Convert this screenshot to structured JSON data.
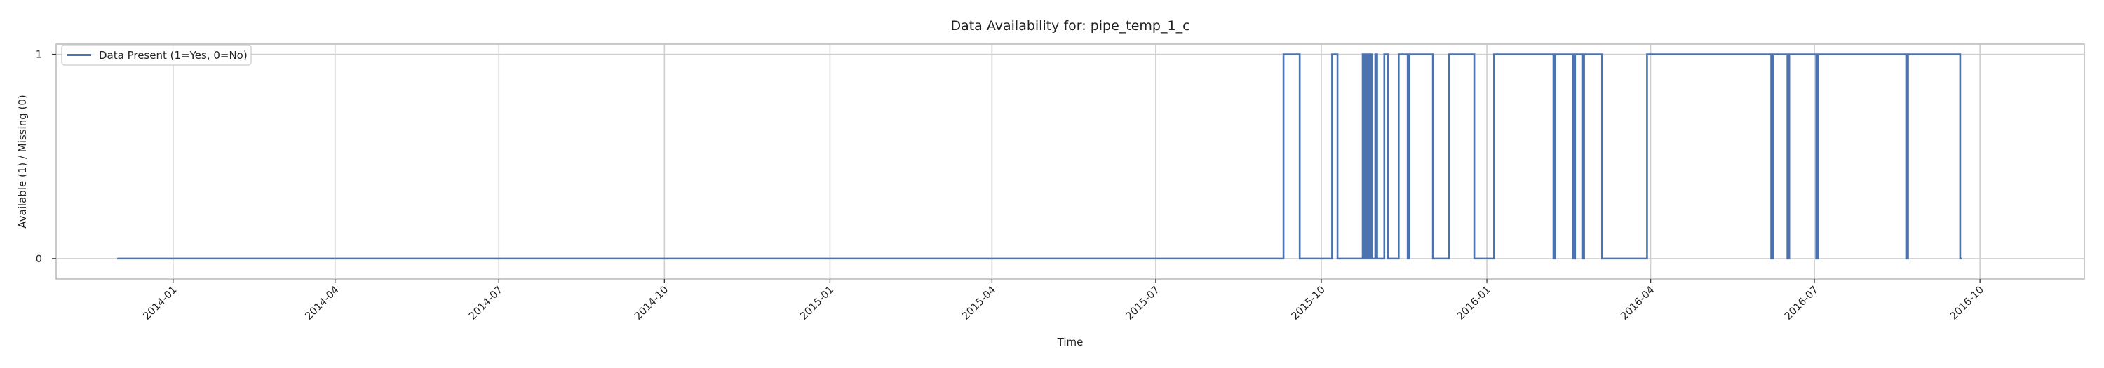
{
  "chart_data": {
    "type": "line",
    "title": "Data Availability for: pipe_temp_1_c",
    "xlabel": "Time",
    "ylabel": "Available (1) / Missing (0)",
    "x_ticks": [
      "2014-01",
      "2014-04",
      "2014-07",
      "2014-10",
      "2015-01",
      "2015-04",
      "2015-07",
      "2015-10",
      "2016-01",
      "2016-04",
      "2016-07",
      "2016-10"
    ],
    "y_ticks": [
      "0",
      "1"
    ],
    "xlim": [
      "2013-10-28",
      "2016-11-28"
    ],
    "ylim": [
      -0.1,
      1.05
    ],
    "grid": true,
    "legend_position": "top-left",
    "color": "#4c72b0",
    "series": [
      {
        "name": "Data Present (1=Yes, 0=No)",
        "step": "post",
        "x": [
          "2013-12-01",
          "2015-09-10",
          "2015-09-17",
          "2015-09-19",
          "2015-10-07",
          "2015-10-10",
          "2015-10-24",
          "2015-10-25",
          "2015-10-26",
          "2015-10-27",
          "2015-10-28",
          "2015-10-29",
          "2015-10-31",
          "2015-11-01",
          "2015-11-03",
          "2015-11-05",
          "2015-11-06",
          "2015-11-07",
          "2015-11-13",
          "2015-11-14",
          "2015-11-18",
          "2015-11-19",
          "2015-12-01",
          "2015-12-02",
          "2015-12-11",
          "2015-12-25",
          "2015-12-28",
          "2016-01-05",
          "2016-01-07",
          "2016-02-07",
          "2016-02-08",
          "2016-02-18",
          "2016-02-19",
          "2016-02-23",
          "2016-02-24",
          "2016-03-04",
          "2016-03-05",
          "2016-03-30",
          "2016-04-01",
          "2016-06-07",
          "2016-06-08",
          "2016-06-09",
          "2016-06-16",
          "2016-06-17",
          "2016-07-02",
          "2016-07-03",
          "2016-08-21",
          "2016-08-22",
          "2016-09-20",
          "2016-09-21"
        ],
        "values": [
          0,
          1,
          1,
          0,
          1,
          0,
          1,
          0,
          1,
          0,
          1,
          0,
          1,
          0,
          0,
          1,
          1,
          0,
          1,
          1,
          0,
          1,
          1,
          0,
          1,
          0,
          0,
          1,
          1,
          0,
          1,
          0,
          1,
          0,
          1,
          1,
          0,
          1,
          1,
          0,
          1,
          1,
          0,
          1,
          0,
          1,
          0,
          1,
          0,
          0
        ]
      }
    ]
  }
}
